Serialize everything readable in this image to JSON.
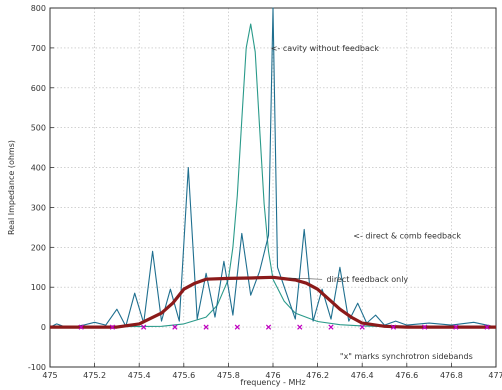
{
  "chart_data": {
    "type": "line",
    "title": "",
    "xlabel": "frequency - MHz",
    "ylabel": "Real Impedance (ohms)",
    "xlim": [
      475,
      477
    ],
    "ylim": [
      -100,
      800
    ],
    "grid": true,
    "xticks": [
      "475",
      "475.2",
      "475.4",
      "475.6",
      "475.8",
      "476",
      "476.2",
      "476.4",
      "476.6",
      "476.8",
      "477"
    ],
    "yticks": [
      "-100",
      "0",
      "100",
      "200",
      "300",
      "400",
      "500",
      "600",
      "700",
      "800"
    ],
    "series": [
      {
        "name": "cavity without feedback",
        "color": "#2a9a8a",
        "x": [
          475.0,
          475.5,
          475.6,
          475.7,
          475.75,
          475.8,
          475.82,
          475.84,
          475.86,
          475.88,
          475.9,
          475.92,
          475.94,
          475.96,
          475.98,
          476.0,
          476.05,
          476.1,
          476.2,
          476.3,
          476.4,
          476.5,
          476.7,
          477.0
        ],
        "y": [
          0,
          2,
          8,
          25,
          55,
          120,
          200,
          330,
          520,
          700,
          760,
          690,
          500,
          310,
          190,
          120,
          65,
          35,
          14,
          6,
          3,
          1,
          0,
          0
        ]
      },
      {
        "name": "direct & comb feedback",
        "color": "#1f6f8f",
        "x": [
          475.0,
          475.03,
          475.06,
          475.1,
          475.15,
          475.2,
          475.25,
          475.3,
          475.34,
          475.38,
          475.42,
          475.46,
          475.5,
          475.54,
          475.58,
          475.62,
          475.66,
          475.7,
          475.74,
          475.78,
          475.82,
          475.86,
          475.9,
          475.94,
          475.98,
          476.0,
          476.02,
          476.06,
          476.1,
          476.14,
          476.18,
          476.22,
          476.26,
          476.3,
          476.34,
          476.38,
          476.42,
          476.46,
          476.5,
          476.55,
          476.6,
          476.7,
          476.8,
          476.9,
          477.0
        ],
        "y": [
          0,
          8,
          2,
          0,
          5,
          12,
          5,
          45,
          2,
          85,
          10,
          190,
          15,
          95,
          15,
          400,
          20,
          135,
          25,
          165,
          30,
          235,
          80,
          140,
          230,
          800,
          150,
          85,
          20,
          245,
          15,
          95,
          20,
          150,
          15,
          60,
          10,
          30,
          5,
          15,
          5,
          10,
          5,
          12,
          0
        ]
      },
      {
        "name": "direct feedback only",
        "color": "#8b1a1a",
        "x": [
          475.0,
          475.3,
          475.4,
          475.5,
          475.55,
          475.6,
          475.65,
          475.7,
          475.8,
          475.9,
          476.0,
          476.1,
          476.15,
          476.2,
          476.25,
          476.3,
          476.35,
          476.4,
          476.5,
          476.6,
          477.0
        ],
        "y": [
          0,
          0,
          8,
          35,
          60,
          95,
          110,
          120,
          122,
          123,
          125,
          118,
          110,
          95,
          70,
          45,
          25,
          10,
          2,
          0,
          0
        ]
      }
    ],
    "markers": {
      "name": "\"x\" marks synchrotron sidebands",
      "symbol": "x",
      "color": "#c000c0",
      "x": [
        475.14,
        475.28,
        475.42,
        475.56,
        475.7,
        475.84,
        475.98,
        476.12,
        476.26,
        476.4,
        476.54,
        476.68,
        476.82,
        476.96
      ],
      "y": [
        0,
        0,
        0,
        0,
        0,
        0,
        0,
        0,
        0,
        0,
        0,
        0,
        0,
        0
      ]
    },
    "annotations": [
      {
        "text": "<- cavity without feedback",
        "x": 475.99,
        "y": 700
      },
      {
        "text": "<- direct & comb feedback",
        "x": 476.36,
        "y": 230
      },
      {
        "text": "direct feedback only",
        "x": 476.24,
        "y": 120
      },
      {
        "text": "\"x\" marks synchrotron sidebands",
        "x": 476.3,
        "y": -72
      }
    ]
  }
}
